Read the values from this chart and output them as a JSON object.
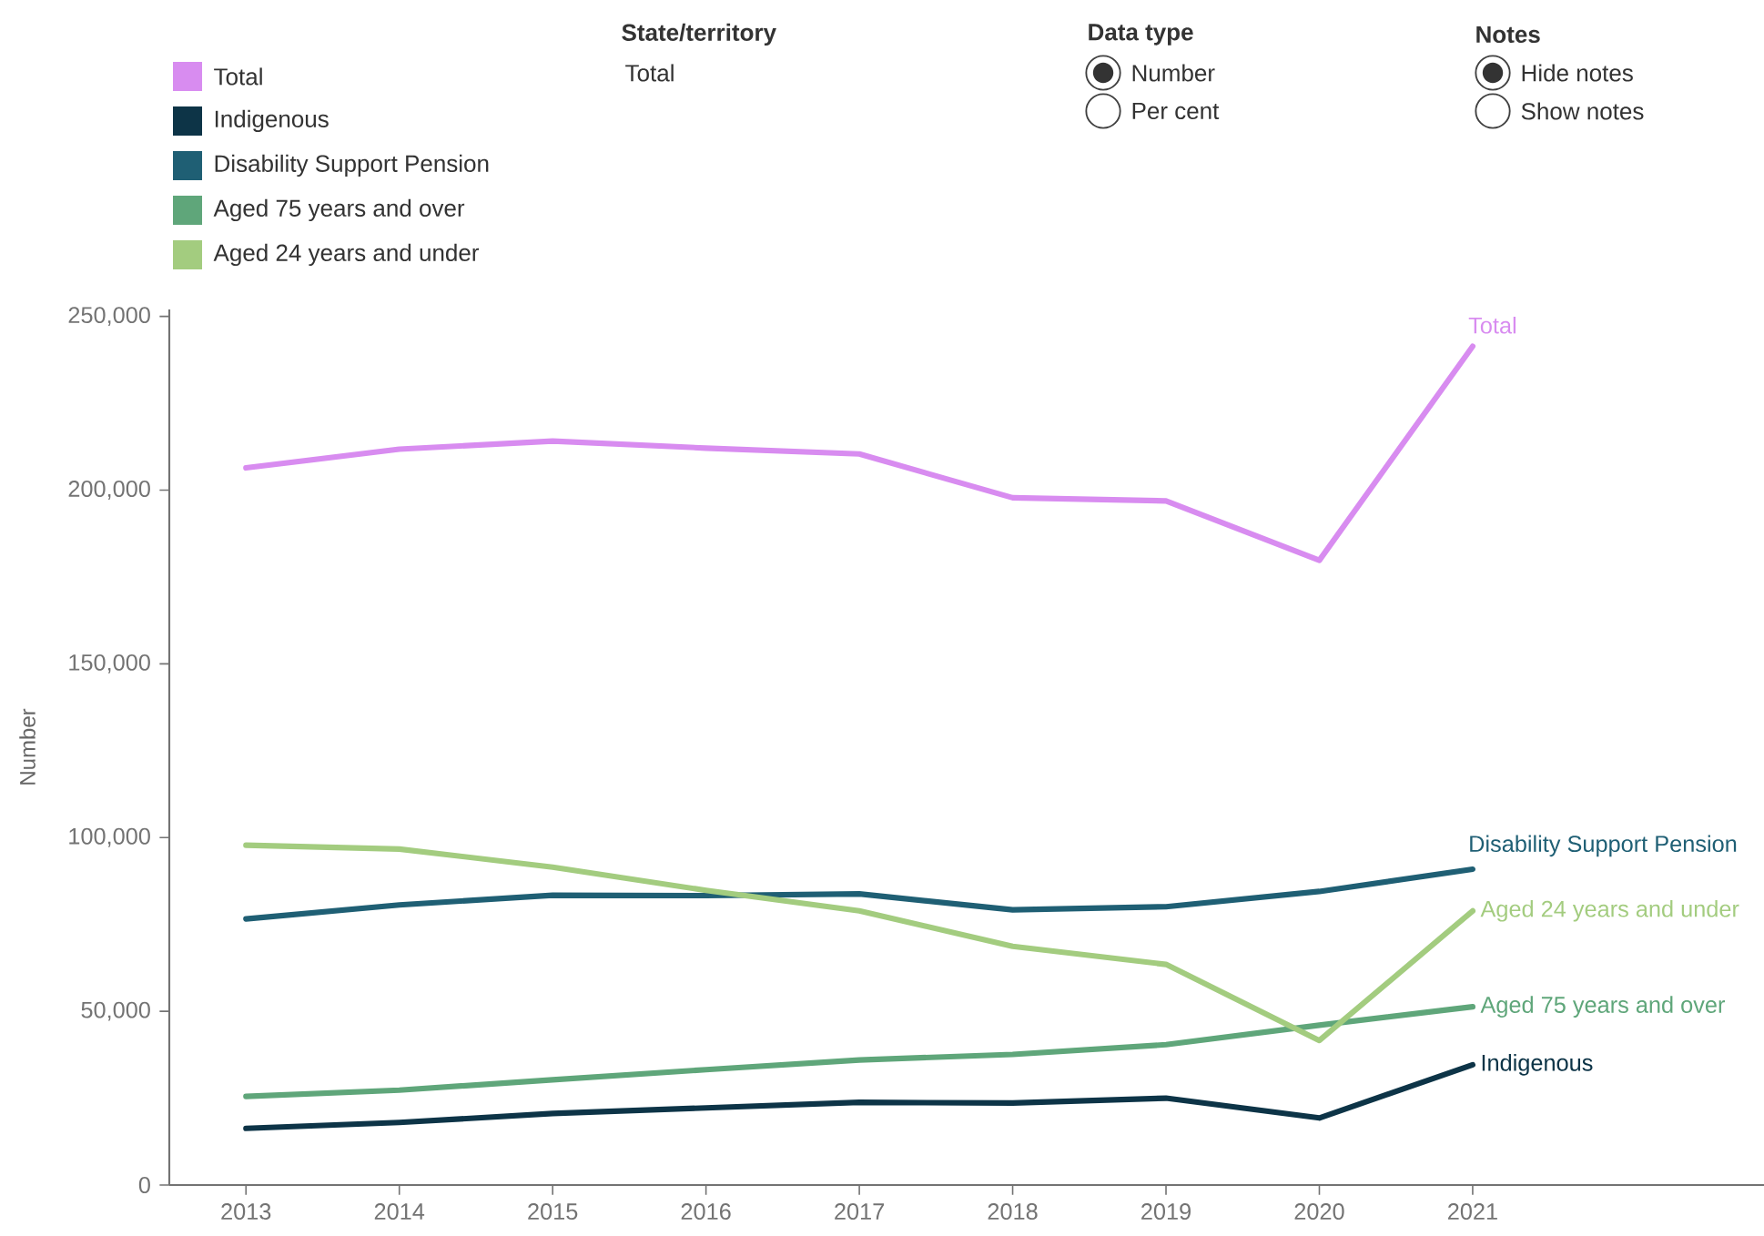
{
  "chart_data": {
    "type": "line",
    "ylabel": "Number",
    "categories": [
      "2013",
      "2014",
      "2015",
      "2016",
      "2017",
      "2018",
      "2019",
      "2020",
      "2021"
    ],
    "series": [
      {
        "name": "Total",
        "color": "#d88cf0",
        "values": [
          206400,
          211800,
          214100,
          212100,
          210400,
          197800,
          196900,
          179800,
          241400
        ]
      },
      {
        "name": "Indigenous",
        "color": "#0d3447",
        "values": [
          16300,
          18000,
          20600,
          22200,
          23800,
          23600,
          25000,
          19300,
          34600
        ]
      },
      {
        "name": "Disability Support Pension",
        "color": "#1f5f74",
        "values": [
          76600,
          80600,
          83400,
          83300,
          83800,
          79200,
          80100,
          84500,
          90900
        ]
      },
      {
        "name": "Aged 75 years and over",
        "color": "#5fa67a",
        "values": [
          25500,
          27300,
          30300,
          33200,
          36000,
          37600,
          40400,
          46000,
          51300
        ]
      },
      {
        "name": "Aged 24 years and under",
        "color": "#a3cc7f",
        "values": [
          97800,
          96700,
          91500,
          84800,
          78900,
          68700,
          63500,
          41600,
          78900
        ]
      }
    ],
    "ylim": [
      0,
      252000
    ],
    "yticks": [
      {
        "value": 0,
        "label": "0"
      },
      {
        "value": 50000,
        "label": "50,000"
      },
      {
        "value": 100000,
        "label": "100,000"
      },
      {
        "value": 150000,
        "label": "150,000"
      },
      {
        "value": 200000,
        "label": "200,000"
      },
      {
        "value": 250000,
        "label": "250,000"
      }
    ],
    "legend": "top left",
    "grid": false,
    "marker": "none",
    "line_style": "solid",
    "annotations": [
      "State/territory",
      "Total",
      "Data type",
      "Number",
      "Per cent",
      "Notes",
      "Hide notes",
      "Show notes"
    ]
  }
}
